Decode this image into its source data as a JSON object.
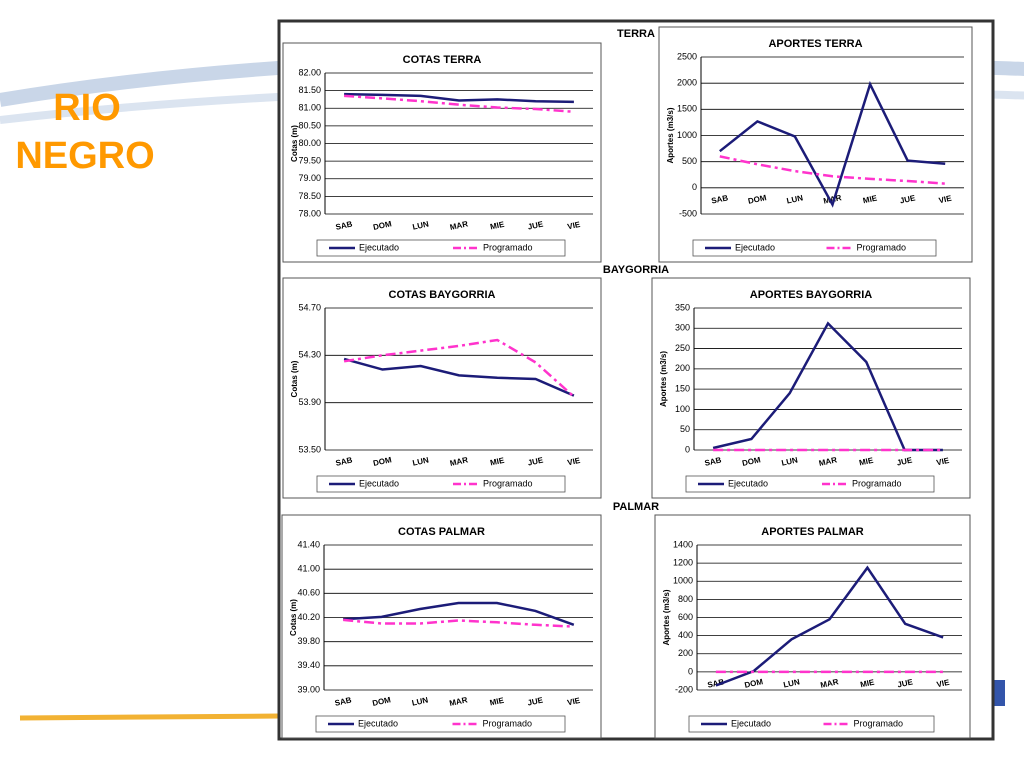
{
  "title_lines": [
    "RIO",
    "NEGRO"
  ],
  "sections": [
    "TERRA",
    "BAYGORRIA",
    "PALMAR"
  ],
  "chart_data": [
    {
      "type": "line",
      "title": "COTAS TERRA",
      "ylabel": "Cotas (m)",
      "categories": [
        "SAB",
        "DOM",
        "LUN",
        "MAR",
        "MIE",
        "JUE",
        "VIE"
      ],
      "ylim": [
        78,
        82
      ],
      "yticks": [
        {
          "value": 78,
          "label": "78.00"
        },
        {
          "value": 78.5,
          "label": "78.50"
        },
        {
          "value": 79,
          "label": "79.00"
        },
        {
          "value": 79.5,
          "label": "79.50"
        },
        {
          "value": 80,
          "label": "80.00"
        },
        {
          "value": 80.5,
          "label": "80.50"
        },
        {
          "value": 81,
          "label": "81.00"
        },
        {
          "value": 81.5,
          "label": "81.50"
        },
        {
          "value": 82,
          "label": "82.00"
        }
      ],
      "grid": true,
      "series": [
        {
          "name": "Ejecutado",
          "color": "#1c1c78",
          "dashed": false,
          "values": [
            81.4,
            81.38,
            81.35,
            81.22,
            81.25,
            81.2,
            81.18
          ]
        },
        {
          "name": "Programado",
          "color": "#ff33cc",
          "dashed": true,
          "values": [
            81.35,
            81.28,
            81.2,
            81.1,
            81.02,
            80.98,
            80.9
          ]
        }
      ]
    },
    {
      "type": "line",
      "title": "APORTES TERRA",
      "ylabel": "Aportes (m3/s)",
      "categories": [
        "SAB",
        "DOM",
        "LUN",
        "MAR",
        "MIE",
        "JUE",
        "VIE"
      ],
      "ylim": [
        -500,
        2500
      ],
      "yticks": [
        -500,
        0,
        500,
        1000,
        1500,
        2000,
        2500
      ],
      "grid": true,
      "series": [
        {
          "name": "Ejecutado",
          "color": "#1c1c78",
          "dashed": false,
          "values": [
            700,
            1270,
            980,
            -320,
            1980,
            520,
            460
          ]
        },
        {
          "name": "Programado",
          "color": "#ff33cc",
          "dashed": true,
          "values": [
            600,
            450,
            320,
            220,
            170,
            130,
            80
          ]
        }
      ]
    },
    {
      "type": "line",
      "title": "COTAS BAYGORRIA",
      "ylabel": "Cotas (m)",
      "categories": [
        "SAB",
        "DOM",
        "LUN",
        "MAR",
        "MIE",
        "JUE",
        "VIE"
      ],
      "ylim": [
        53.5,
        54.7
      ],
      "yticks": [
        {
          "value": 53.5,
          "label": "53.50"
        },
        {
          "value": 53.9,
          "label": "53.90"
        },
        {
          "value": 54.3,
          "label": "54.30"
        },
        {
          "value": 54.7,
          "label": "54.70"
        }
      ],
      "grid": true,
      "series": [
        {
          "name": "Ejecutado",
          "color": "#1c1c78",
          "dashed": false,
          "values": [
            54.27,
            54.18,
            54.21,
            54.13,
            54.11,
            54.1,
            53.96
          ]
        },
        {
          "name": "Programado",
          "color": "#ff33cc",
          "dashed": true,
          "values": [
            54.25,
            54.3,
            54.34,
            54.38,
            54.43,
            54.24,
            53.95
          ]
        }
      ]
    },
    {
      "type": "line",
      "title": "APORTES BAYGORRIA",
      "ylabel": "Aportes (m3/s)",
      "categories": [
        "SAB",
        "DOM",
        "LUN",
        "MAR",
        "MIE",
        "JUE",
        "VIE"
      ],
      "ylim": [
        0,
        350
      ],
      "yticks": [
        0,
        50,
        100,
        150,
        200,
        250,
        300,
        350
      ],
      "grid": true,
      "series": [
        {
          "name": "Ejecutado",
          "color": "#1c1c78",
          "dashed": false,
          "values": [
            5,
            27,
            140,
            312,
            217,
            0,
            0
          ]
        },
        {
          "name": "Programado",
          "color": "#ff33cc",
          "dashed": true,
          "values": [
            0,
            0,
            0,
            0,
            0,
            0,
            0
          ]
        }
      ]
    },
    {
      "type": "line",
      "title": "COTAS PALMAR",
      "ylabel": "Cotas (m)",
      "categories": [
        "SAB",
        "DOM",
        "LUN",
        "MAR",
        "MIE",
        "JUE",
        "VIE"
      ],
      "ylim": [
        39,
        41.4
      ],
      "yticks": [
        {
          "value": 39,
          "label": "39.00"
        },
        {
          "value": 39.4,
          "label": "39.40"
        },
        {
          "value": 39.8,
          "label": "39.80"
        },
        {
          "value": 40.2,
          "label": "40.20"
        },
        {
          "value": 40.6,
          "label": "40.60"
        },
        {
          "value": 41,
          "label": "41.00"
        },
        {
          "value": 41.4,
          "label": "41.40"
        }
      ],
      "grid": true,
      "series": [
        {
          "name": "Ejecutado",
          "color": "#1c1c78",
          "dashed": false,
          "values": [
            40.17,
            40.21,
            40.34,
            40.44,
            40.44,
            40.31,
            40.08
          ]
        },
        {
          "name": "Programado",
          "color": "#ff33cc",
          "dashed": true,
          "values": [
            40.16,
            40.1,
            40.1,
            40.15,
            40.12,
            40.08,
            40.05
          ]
        }
      ]
    },
    {
      "type": "line",
      "title": "APORTES PALMAR",
      "ylabel": "Aportes (m3/s)",
      "categories": [
        "SAB",
        "DOM",
        "LUN",
        "MAR",
        "MIE",
        "JUE",
        "VIE"
      ],
      "ylim": [
        -200,
        1400
      ],
      "yticks": [
        -200,
        0,
        200,
        400,
        600,
        800,
        1000,
        1200,
        1400
      ],
      "grid": true,
      "series": [
        {
          "name": "Ejecutado",
          "color": "#1c1c78",
          "dashed": false,
          "values": [
            -150,
            10,
            360,
            580,
            1150,
            530,
            380
          ]
        },
        {
          "name": "Programado",
          "color": "#ff33cc",
          "dashed": true,
          "values": [
            0,
            0,
            0,
            0,
            0,
            0,
            0
          ]
        }
      ]
    }
  ]
}
